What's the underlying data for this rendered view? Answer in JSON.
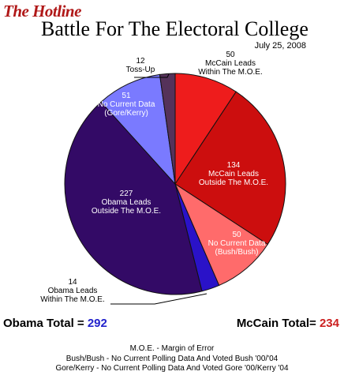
{
  "header": {
    "brand": "The Hotline",
    "title": "Battle For The Electoral College",
    "date": "July 25, 2008"
  },
  "chart_data": {
    "type": "pie",
    "title": "Battle For The Electoral College",
    "slices": [
      {
        "value": 50,
        "label": [
          "50",
          "McCain Leads",
          "Within The M.O.E."
        ],
        "color": "#ee1c1c"
      },
      {
        "value": 134,
        "label": [
          "134",
          "McCain Leads",
          "Outside The M.O.E."
        ],
        "color": "#cc0e0e"
      },
      {
        "value": 50,
        "label": [
          "50",
          "No Current Data",
          "(Bush/Bush)"
        ],
        "color": "#ff6b6b"
      },
      {
        "value": 14,
        "label": [
          "14",
          "Obama Leads",
          "Within The M.O.E."
        ],
        "color": "#2a12c8"
      },
      {
        "value": 227,
        "label": [
          "227",
          "Obama Leads",
          "Outside The M.O.E."
        ],
        "color": "#330a66"
      },
      {
        "value": 51,
        "label": [
          "51",
          "No Current Data",
          "(Gore/Kerry)"
        ],
        "color": "#7a7aff"
      },
      {
        "value": 12,
        "label": [
          "12",
          "Toss-Up"
        ],
        "color": "#55325a"
      }
    ]
  },
  "totals": {
    "obama_label": "Obama Total = ",
    "obama_value": "292",
    "mccain_label": "McCain Total= ",
    "mccain_value": "234"
  },
  "notes": [
    "M.O.E. - Margin of Error",
    "Bush/Bush - No Current Polling Data And Voted Bush '00/'04",
    "Gore/Kerry - No Current Polling Data And Voted Gore '00/Kerry '04"
  ]
}
